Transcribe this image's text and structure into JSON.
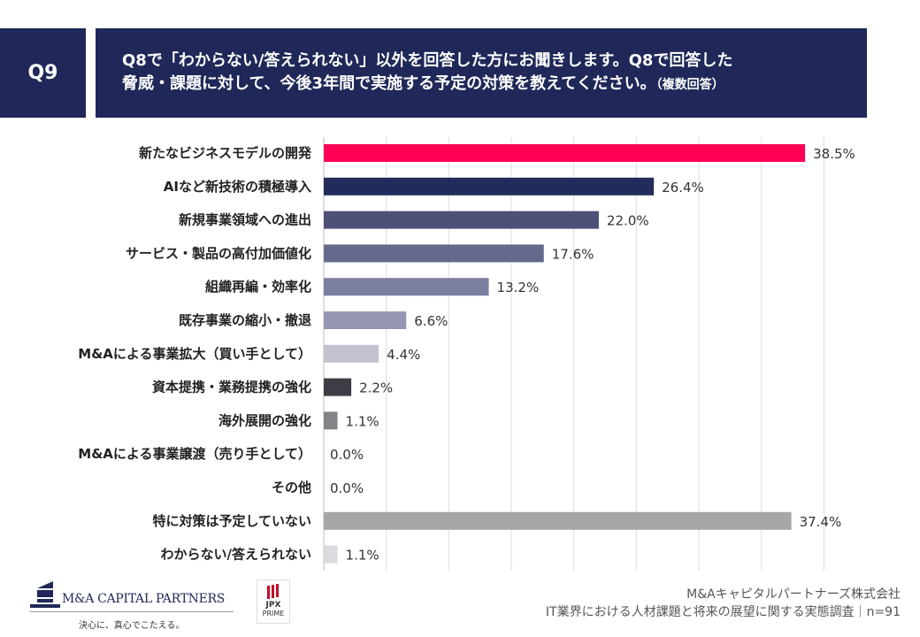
{
  "header": {
    "question_number": "Q9",
    "title_line1": "Q8で「わからない/答えられない」以外を回答した方にお聞きします。Q8で回答した",
    "title_line2": "脅威・課題に対して、今後3年間で実施する予定の対策を教えてください。",
    "title_note": "（複数回答）"
  },
  "chart_data": {
    "type": "bar",
    "orientation": "horizontal",
    "unit": "%",
    "xlim": [
      0,
      45
    ],
    "grid": true,
    "categories": [
      "新たなビジネスモデルの開発",
      "AIなど新技術の積極導入",
      "新規事業領域への進出",
      "サービス・製品の高付加価値化",
      "組織再編・効率化",
      "既存事業の縮小・撤退",
      "M&Aによる事業拡大（買い手として）",
      "資本提携・業務提携の強化",
      "海外展開の強化",
      "M&Aによる事業譲渡（売り手として）",
      "その他",
      "特に対策は予定していない",
      "わからない/答えられない"
    ],
    "values": [
      38.5,
      26.4,
      22.0,
      17.6,
      13.2,
      6.6,
      4.4,
      2.2,
      1.1,
      0.0,
      0.0,
      37.4,
      1.1
    ],
    "labels": [
      "38.5%",
      "26.4%",
      "22.0%",
      "17.6%",
      "13.2%",
      "6.6%",
      "4.4%",
      "2.2%",
      "1.1%",
      "0.0%",
      "0.0%",
      "37.4%",
      "1.1%"
    ],
    "colors": [
      "#ff0055",
      "#222c5a",
      "#4f5078",
      "#656a8c",
      "#7d7fa0",
      "#9596b2",
      "#c2c2d0",
      "#3e3c44",
      "#858387",
      "#cccccc",
      "#cccccc",
      "#a7a5a8",
      "#dcdadf"
    ]
  },
  "footer": {
    "company_logo": "M&A CAPITAL PARTNERS",
    "company_tagline": "決心に、真心でこたえる。",
    "jpx_logo": "JPX",
    "jpx_sub": "PRIME",
    "company": "M&Aキャピタルパートナーズ株式会社",
    "survey": "IT業界における人材課題と将来の展望に関する実態調査｜n=91"
  }
}
